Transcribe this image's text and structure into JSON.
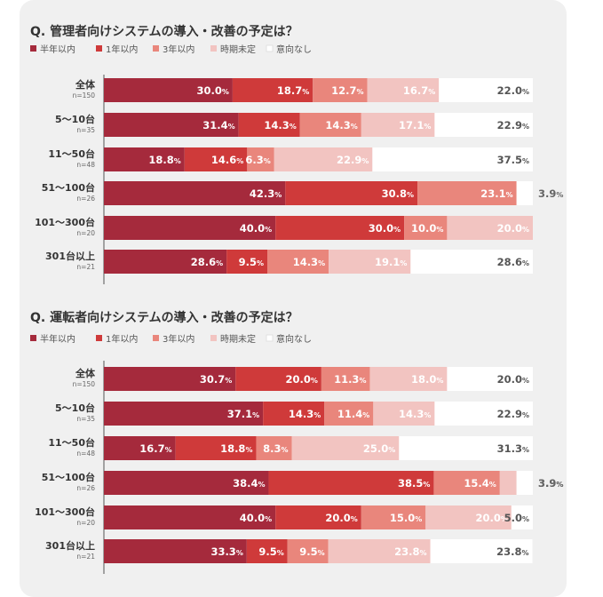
{
  "legend_labels": [
    "半年以内",
    "1年以内",
    "3年以内",
    "時期未定",
    "意向なし"
  ],
  "colors": [
    "#a52a3c",
    "#cf3a3a",
    "#e9867c",
    "#f2c4c1",
    "#ffffff"
  ],
  "chart_data": [
    {
      "type": "bar",
      "stacked": true,
      "orientation": "horizontal",
      "title": "Q. 管理者向けシステムの導入・改善の予定は？",
      "categories": [
        "全体",
        "5〜10台",
        "11〜50台",
        "51〜100台",
        "101〜300台",
        "301台以上"
      ],
      "sample_sizes": [
        "n=150",
        "n=35",
        "n=48",
        "n=26",
        "n=20",
        "n=21"
      ],
      "series": [
        {
          "name": "半年以内",
          "values": [
            30.0,
            31.4,
            18.8,
            42.3,
            40.0,
            28.6
          ]
        },
        {
          "name": "1年以内",
          "values": [
            18.7,
            14.3,
            14.6,
            30.8,
            30.0,
            9.5
          ]
        },
        {
          "name": "3年以内",
          "values": [
            12.7,
            14.3,
            6.3,
            23.1,
            10.0,
            14.3
          ]
        },
        {
          "name": "時期未定",
          "values": [
            16.7,
            17.1,
            22.9,
            0,
            20.0,
            19.1
          ]
        },
        {
          "name": "意向なし",
          "values": [
            22.0,
            22.9,
            37.5,
            3.9,
            0,
            28.6
          ]
        }
      ],
      "xlim": [
        0,
        100
      ],
      "unit": "%"
    },
    {
      "type": "bar",
      "stacked": true,
      "orientation": "horizontal",
      "title": "Q. 運転者向けシステムの導入・改善の予定は？",
      "categories": [
        "全体",
        "5〜10台",
        "11〜50台",
        "51〜100台",
        "101〜300台",
        "301台以上"
      ],
      "sample_sizes": [
        "n=150",
        "n=35",
        "n=48",
        "n=26",
        "n=20",
        "n=21"
      ],
      "series": [
        {
          "name": "半年以内",
          "values": [
            30.7,
            37.1,
            16.7,
            38.4,
            40.0,
            33.3
          ]
        },
        {
          "name": "1年以内",
          "values": [
            20.0,
            14.3,
            18.8,
            38.5,
            20.0,
            9.5
          ]
        },
        {
          "name": "3年以内",
          "values": [
            11.3,
            11.4,
            8.3,
            15.4,
            15.0,
            9.5
          ]
        },
        {
          "name": "時期未定",
          "values": [
            18.0,
            14.3,
            25.0,
            3.9,
            20.0,
            23.8
          ]
        },
        {
          "name": "意向なし",
          "values": [
            20.0,
            22.9,
            31.3,
            3.9,
            5.0,
            23.8
          ]
        }
      ],
      "xlim": [
        0,
        100
      ],
      "unit": "%"
    }
  ]
}
